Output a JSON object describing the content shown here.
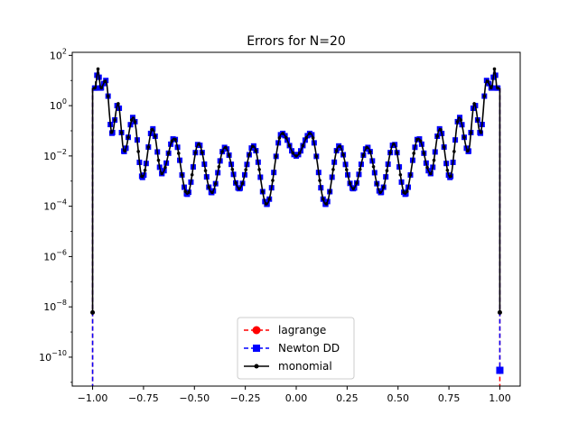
{
  "chart_data": {
    "type": "line",
    "title": "Errors for N=20",
    "xlabel": "",
    "ylabel": "",
    "xlim": [
      -1.1,
      1.1
    ],
    "ylim_log10": [
      -11.15,
      2.12
    ],
    "yscale": "log",
    "x_ticks": [
      -1.0,
      -0.75,
      -0.5,
      -0.25,
      0.0,
      0.25,
      0.5,
      0.75,
      1.0
    ],
    "x_tick_labels": [
      "−1.00",
      "−0.75",
      "−0.50",
      "−0.25",
      "0.00",
      "0.25",
      "0.50",
      "0.75",
      "1.00"
    ],
    "y_ticks_exp": [
      2,
      0,
      -2,
      -4,
      -6,
      -8,
      -10
    ],
    "y_tick_labels": [
      {
        "base": "10",
        "exp": "2"
      },
      {
        "base": "10",
        "exp": "0"
      },
      {
        "base": "10",
        "exp": "−2"
      },
      {
        "base": "10",
        "exp": "−4"
      },
      {
        "base": "10",
        "exp": "−6"
      },
      {
        "base": "10",
        "exp": "−8"
      },
      {
        "base": "10",
        "exp": "−10"
      }
    ],
    "nodes": [
      -1.0,
      -0.9898,
      -0.9595,
      -0.9096,
      -0.8413,
      -0.7557,
      -0.6549,
      -0.5406,
      -0.4154,
      -0.2817,
      -0.1423,
      0.0,
      0.1423,
      0.2817,
      0.4154,
      0.5406,
      0.6549,
      0.7557,
      0.8413,
      0.9096,
      0.9595,
      0.9898,
      1.0
    ],
    "hump_peaks": [
      {
        "x": -0.975,
        "y": 30
      },
      {
        "x": -0.935,
        "y": 10
      },
      {
        "x": -0.875,
        "y": 1.2
      },
      {
        "x": -0.8,
        "y": 0.35
      },
      {
        "x": -0.705,
        "y": 0.12
      },
      {
        "x": -0.6,
        "y": 0.05
      },
      {
        "x": -0.48,
        "y": 0.03
      },
      {
        "x": -0.35,
        "y": 0.022
      },
      {
        "x": -0.21,
        "y": 0.025
      },
      {
        "x": -0.07,
        "y": 0.08
      },
      {
        "x": 0.07,
        "y": 0.08
      },
      {
        "x": 0.21,
        "y": 0.025
      },
      {
        "x": 0.35,
        "y": 0.022
      },
      {
        "x": 0.48,
        "y": 0.03
      },
      {
        "x": 0.6,
        "y": 0.05
      },
      {
        "x": 0.705,
        "y": 0.12
      },
      {
        "x": 0.8,
        "y": 0.35
      },
      {
        "x": 0.875,
        "y": 1.2
      },
      {
        "x": 0.935,
        "y": 10
      },
      {
        "x": 0.975,
        "y": 30
      }
    ],
    "dip_minima": [
      {
        "x": -0.985,
        "y": 5
      },
      {
        "x": -0.96,
        "y": 5
      },
      {
        "x": -0.905,
        "y": 0.08
      },
      {
        "x": -0.845,
        "y": 0.015
      },
      {
        "x": -0.755,
        "y": 0.0014
      },
      {
        "x": -0.66,
        "y": 0.002
      },
      {
        "x": -0.535,
        "y": 0.0003
      },
      {
        "x": -0.415,
        "y": 0.00035
      },
      {
        "x": -0.28,
        "y": 0.0005
      },
      {
        "x": -0.145,
        "y": 0.00012
      },
      {
        "x": 0.0,
        "y": 0.01
      },
      {
        "x": 0.145,
        "y": 0.00012
      },
      {
        "x": 0.28,
        "y": 0.0005
      },
      {
        "x": 0.415,
        "y": 0.00035
      },
      {
        "x": 0.535,
        "y": 0.0003
      },
      {
        "x": 0.66,
        "y": 0.002
      },
      {
        "x": 0.755,
        "y": 0.0014
      },
      {
        "x": 0.845,
        "y": 0.015
      },
      {
        "x": 0.905,
        "y": 0.08
      },
      {
        "x": 0.96,
        "y": 5
      },
      {
        "x": 0.985,
        "y": 5
      }
    ],
    "endpoint_values": {
      "monomial_left": 6e-09,
      "monomial_right": 6e-09,
      "newton_right": 3e-11
    },
    "series": [
      {
        "name": "lagrange",
        "color": "#ff0000",
        "linestyle": "dashed",
        "marker": "circle"
      },
      {
        "name": "Newton DD",
        "color": "#0000ff",
        "linestyle": "dashed",
        "marker": "square"
      },
      {
        "name": "monomial",
        "color": "#000000",
        "linestyle": "solid",
        "marker": "dot"
      }
    ],
    "legend_position": "lower-center",
    "grid": false
  }
}
